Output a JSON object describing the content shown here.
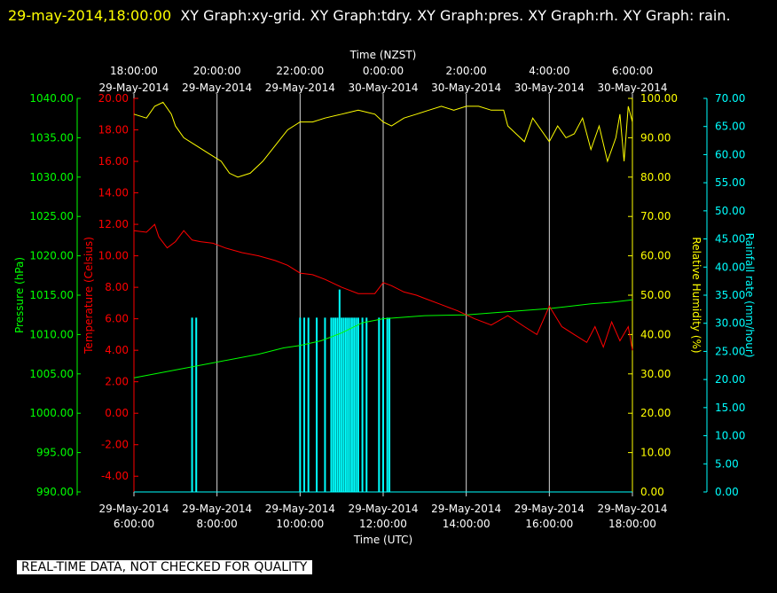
{
  "header": {
    "timestamp": "29-may-2014,18:00:00",
    "rest": "XY Graph:xy-grid.  XY Graph:tdry.  XY Graph:pres.  XY Graph:rh.  XY Graph: rain."
  },
  "notice": "REAL-TIME DATA, NOT CHECKED FOR QUALITY",
  "colors": {
    "background": "#000000",
    "temperature": "#ff0000",
    "pressure": "#00ff00",
    "humidity": "#ffff00",
    "rain": "#00ffff",
    "grid": "#d8d8d8"
  },
  "chart_data": {
    "type": "line",
    "top_axis": {
      "label": "Time (NZST)",
      "ticks": [
        {
          "t": 0,
          "time": "18:00:00",
          "date": "29-May-2014"
        },
        {
          "t": 2,
          "time": "20:00:00",
          "date": "29-May-2014"
        },
        {
          "t": 4,
          "time": "22:00:00",
          "date": "29-May-2014"
        },
        {
          "t": 6,
          "time": "0:00:00",
          "date": "30-May-2014"
        },
        {
          "t": 8,
          "time": "2:00:00",
          "date": "30-May-2014"
        },
        {
          "t": 10,
          "time": "4:00:00",
          "date": "30-May-2014"
        },
        {
          "t": 12,
          "time": "6:00:00",
          "date": "30-May-2014"
        }
      ]
    },
    "bottom_axis": {
      "label": "Time (UTC)",
      "range": [
        "29-May-2014 6:00:00",
        "29-May-2014 18:00:00"
      ],
      "ticks": [
        {
          "t": 0,
          "date": "29-May-2014",
          "time": "6:00:00"
        },
        {
          "t": 2,
          "date": "29-May-2014",
          "time": "8:00:00"
        },
        {
          "t": 4,
          "date": "29-May-2014",
          "time": "10:00:00"
        },
        {
          "t": 6,
          "date": "29-May-2014",
          "time": "12:00:00"
        },
        {
          "t": 8,
          "date": "29-May-2014",
          "time": "14:00:00"
        },
        {
          "t": 10,
          "date": "29-May-2014",
          "time": "16:00:00"
        },
        {
          "t": 12,
          "date": "29-May-2014",
          "time": "18:00:00"
        }
      ]
    },
    "axes": {
      "pressure": {
        "label": "Pressure (hPa)",
        "range": [
          990,
          1040
        ],
        "ticks": [
          "990.00",
          "995.00",
          "1000.00",
          "1005.00",
          "1010.00",
          "1015.00",
          "1020.00",
          "1025.00",
          "1030.00",
          "1035.00",
          "1040.00"
        ]
      },
      "temperature": {
        "label": "Temperature (Celsius)",
        "range": [
          -5,
          20
        ],
        "ticks": [
          "-4.00",
          "-2.00",
          "0.00",
          "2.00",
          "4.00",
          "6.00",
          "8.00",
          "10.00",
          "12.00",
          "14.00",
          "16.00",
          "18.00",
          "20.00"
        ]
      },
      "humidity": {
        "label": "Relative Humidity (%)",
        "range": [
          0,
          100
        ],
        "ticks": [
          "0.00",
          "10.00",
          "20.00",
          "30.00",
          "40.00",
          "50.00",
          "60.00",
          "70.00",
          "80.00",
          "90.00",
          "100.00"
        ]
      },
      "rain": {
        "label": "Rainfall rate (mm/hour)",
        "range": [
          0,
          70
        ],
        "ticks": [
          "0.00",
          "5.00",
          "10.00",
          "15.00",
          "20.00",
          "25.00",
          "30.00",
          "35.00",
          "40.00",
          "45.00",
          "50.00",
          "55.00",
          "60.00",
          "65.00",
          "70.00"
        ]
      }
    },
    "grid": true,
    "series": {
      "temperature": {
        "axis": "temperature",
        "x": [
          0,
          0.3,
          0.5,
          0.6,
          0.8,
          1.0,
          1.2,
          1.4,
          1.6,
          1.9,
          2.2,
          2.6,
          3.0,
          3.4,
          3.7,
          4.0,
          4.3,
          4.6,
          5.0,
          5.4,
          5.8,
          6.0,
          6.2,
          6.5,
          6.8,
          7.0,
          7.4,
          7.8,
          8.2,
          8.6,
          9.0,
          9.4,
          9.7,
          10.0,
          10.3,
          10.6,
          10.9,
          11.1,
          11.3,
          11.5,
          11.7,
          11.9,
          12.0
        ],
        "y": [
          11.6,
          11.5,
          12.0,
          11.2,
          10.5,
          10.9,
          11.6,
          11.0,
          10.9,
          10.8,
          10.5,
          10.2,
          10.0,
          9.7,
          9.4,
          8.9,
          8.8,
          8.5,
          8.0,
          7.6,
          7.6,
          8.3,
          8.1,
          7.7,
          7.5,
          7.3,
          6.9,
          6.5,
          6.0,
          5.6,
          6.2,
          5.5,
          5.0,
          6.8,
          5.5,
          5.0,
          4.5,
          5.5,
          4.2,
          5.8,
          4.6,
          5.5,
          4.0
        ]
      },
      "pressure": {
        "axis": "pressure",
        "x": [
          0,
          1,
          2,
          3,
          3.6,
          4,
          4.5,
          5,
          5.5,
          6,
          7,
          8,
          9,
          10,
          11,
          11.5,
          12
        ],
        "y": [
          1004.5,
          1005.5,
          1006.5,
          1007.5,
          1008.3,
          1008.6,
          1009.2,
          1010.2,
          1011.5,
          1012.0,
          1012.4,
          1012.5,
          1012.9,
          1013.3,
          1013.9,
          1014.1,
          1014.4
        ]
      },
      "humidity": {
        "axis": "humidity",
        "x": [
          0,
          0.3,
          0.5,
          0.7,
          0.9,
          1.0,
          1.2,
          1.5,
          1.8,
          2.1,
          2.3,
          2.5,
          2.8,
          3.1,
          3.4,
          3.7,
          4.0,
          4.3,
          4.6,
          5.0,
          5.4,
          5.8,
          6.0,
          6.2,
          6.5,
          6.8,
          7.1,
          7.4,
          7.7,
          8.0,
          8.3,
          8.6,
          8.9,
          9.0,
          9.2,
          9.4,
          9.6,
          9.8,
          10.0,
          10.2,
          10.4,
          10.6,
          10.8,
          11.0,
          11.2,
          11.4,
          11.6,
          11.7,
          11.8,
          11.9,
          12.0
        ],
        "y": [
          96,
          95,
          98,
          99,
          96,
          93,
          90,
          88,
          86,
          84,
          81,
          80,
          81,
          84,
          88,
          92,
          94,
          94,
          95,
          96,
          97,
          96,
          94,
          93,
          95,
          96,
          97,
          98,
          97,
          98,
          98,
          97,
          97,
          93,
          91,
          89,
          95,
          92,
          89,
          93,
          90,
          91,
          95,
          87,
          93,
          84,
          90,
          96,
          84,
          98,
          94
        ]
      },
      "rain": {
        "axis": "rain",
        "type": "bar",
        "x": [
          1.4,
          1.5,
          4.0,
          4.1,
          4.2,
          4.4,
          4.6,
          4.75,
          4.8,
          4.85,
          4.9,
          4.95,
          5.0,
          5.05,
          5.1,
          5.15,
          5.2,
          5.25,
          5.3,
          5.35,
          5.4,
          5.5,
          5.6,
          5.9,
          6.0,
          6.1,
          6.15
        ],
        "y": [
          31,
          31,
          31,
          31,
          31,
          31,
          31,
          31,
          31,
          31,
          31,
          36,
          31,
          31,
          31,
          31,
          31,
          31,
          31,
          31,
          31,
          31,
          31,
          31,
          31,
          31,
          31
        ]
      }
    }
  }
}
